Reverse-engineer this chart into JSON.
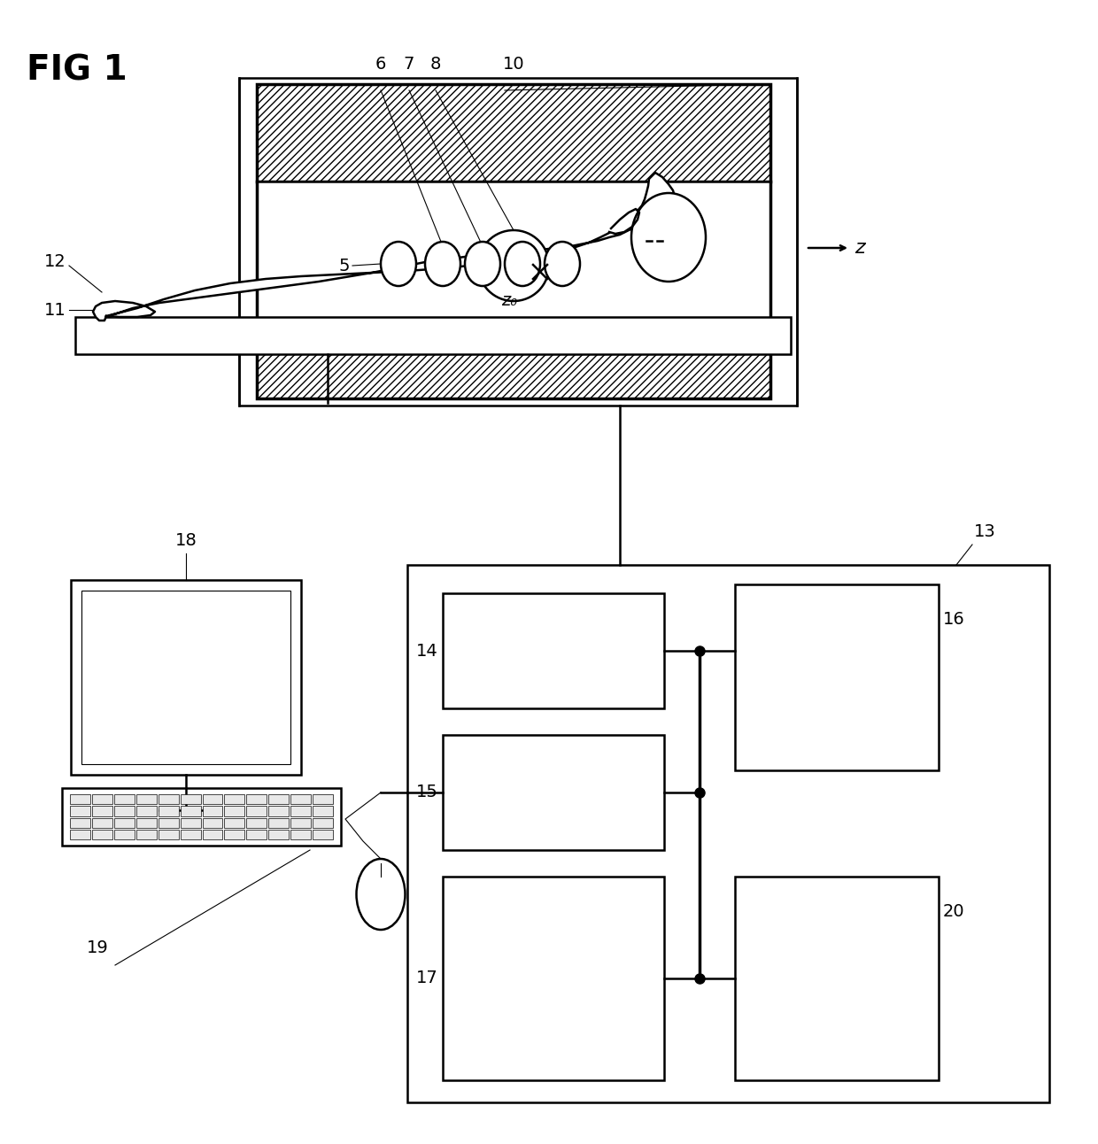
{
  "fig_label": "FIG 1",
  "bg_color": "#ffffff",
  "line_color": "#000000",
  "fig_width": 12.4,
  "fig_height": 12.92,
  "labels": {
    "fig_title": "FIG 1",
    "z_arrow": "z",
    "z0_label": "z₀",
    "num_5": "5",
    "num_6": "6",
    "num_7": "7",
    "num_8": "8",
    "num_10": "10",
    "num_11": "11",
    "num_12": "12",
    "num_13": "13",
    "num_14": "14",
    "num_15": "15",
    "num_16": "16",
    "num_17": "17",
    "num_18": "18",
    "num_19": "19",
    "num_20": "20"
  }
}
